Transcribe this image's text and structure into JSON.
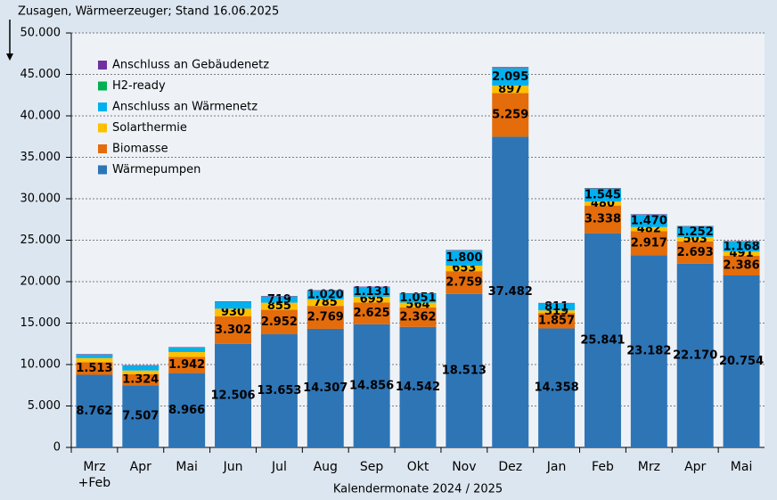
{
  "chart_data": {
    "type": "stacked-bar",
    "title": "Zusagen, Wärmeerzeuger; Stand 16.06.2025",
    "x_label": "Kalendermonate 2024 / 2025",
    "categories": [
      "Mrz\n+Feb",
      "Apr",
      "Mai",
      "Jun",
      "Jul",
      "Aug",
      "Sep",
      "Okt",
      "Nov",
      "Dez",
      "Jan",
      "Feb",
      "Mrz",
      "Apr",
      "Mai"
    ],
    "series": [
      {
        "name": "Wärmepumpen",
        "color": "#2e75b6",
        "label_color": "#ffffff",
        "values": [
          8762,
          7507,
          8966,
          12506,
          13653,
          14307,
          14856,
          14542,
          18513,
          37482,
          14358,
          25841,
          23182,
          22170,
          20754
        ],
        "value_labels": [
          "8.762",
          "7.507",
          "8.966",
          "12.506",
          "13.653",
          "14.307",
          "14.856",
          "14.542",
          "18.513",
          "37.482",
          "14.358",
          "25.841",
          "23.182",
          "22.170",
          "20.754"
        ]
      },
      {
        "name": "Biomasse",
        "color": "#e46c0a",
        "label_color": "#ffffff",
        "values": [
          1513,
          1324,
          1942,
          3302,
          2952,
          2769,
          2625,
          2362,
          2759,
          5259,
          1857,
          3338,
          2917,
          2693,
          2386
        ],
        "value_labels": [
          "1.513",
          "1.324",
          "1.942",
          "3.302",
          "2.952",
          "2.769",
          "2.625",
          "2.362",
          "2.759",
          "5.259",
          "1.857",
          "3.338",
          "2.917",
          "2.693",
          "2.386"
        ]
      },
      {
        "name": "Solarthermie",
        "color": "#ffc000",
        "label_color": "#000000",
        "values": [
          500,
          450,
          600,
          930,
          855,
          785,
          695,
          564,
          653,
          897,
          319,
          480,
          482,
          503,
          491
        ],
        "value_labels": [
          null,
          null,
          null,
          "930",
          "855",
          "785",
          "695",
          "564",
          "653",
          "897",
          "319",
          "480",
          "482",
          "503",
          "491"
        ]
      },
      {
        "name": "Anschluss an Wärmenetz",
        "color": "#00b0f0",
        "label_color": "#000000",
        "values": [
          400,
          550,
          500,
          800,
          719,
          1020,
          1131,
          1051,
          1800,
          2095,
          811,
          1545,
          1470,
          1252,
          1168
        ],
        "value_labels": [
          null,
          null,
          null,
          null,
          "719",
          "1.020",
          "1.131",
          "1.051",
          "1.800",
          "2.095",
          "811",
          "1.545",
          "1.470",
          "1.252",
          "1.168"
        ]
      },
      {
        "name": "H2-ready",
        "color": "#00b050",
        "label_color": "#000000",
        "values": [
          30,
          30,
          30,
          30,
          30,
          30,
          30,
          30,
          30,
          30,
          30,
          30,
          30,
          30,
          30
        ]
      },
      {
        "name": "Anschluss an Gebäudenetz",
        "color": "#7030a0",
        "label_color": "#000000",
        "values": [
          60,
          60,
          60,
          60,
          60,
          60,
          60,
          60,
          60,
          120,
          60,
          60,
          60,
          60,
          60
        ]
      }
    ],
    "ylim": [
      0,
      50000
    ],
    "yticks": [
      0,
      {
        "value": 5000,
        "label": "5.000"
      },
      {
        "value": 10000,
        "label": "10.000"
      },
      {
        "value": 15000,
        "label": "15.000"
      },
      {
        "value": 20000,
        "label": "20.000"
      },
      {
        "value": 25000,
        "label": "25.000"
      },
      {
        "value": 30000,
        "label": "30.000"
      },
      {
        "value": 35000,
        "label": "35.000"
      },
      {
        "value": 40000,
        "label": "40.000"
      },
      {
        "value": 45000,
        "label": "45.000"
      },
      {
        "value": 50000,
        "label": "50.000"
      }
    ],
    "grid": true,
    "legend": "upper-left"
  }
}
